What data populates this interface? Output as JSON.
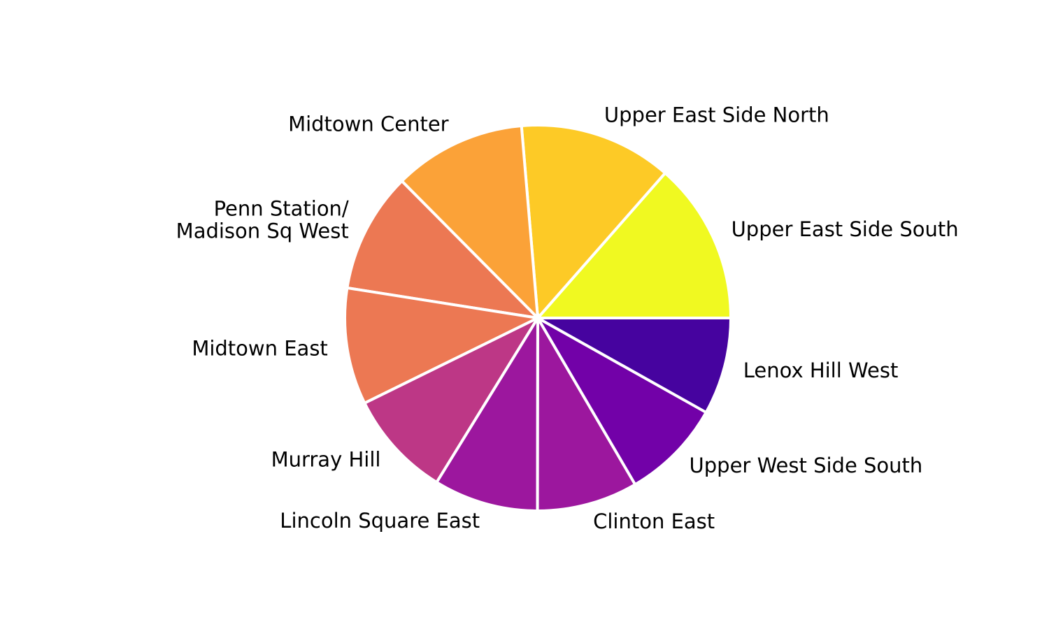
{
  "chart_data": {
    "type": "pie",
    "title": "",
    "start_angle_deg": 0,
    "direction": "counterclockwise",
    "slices": [
      {
        "label": "Upper East Side South",
        "value": 13.3,
        "color": "#f0f921"
      },
      {
        "label": "Upper East Side North",
        "value": 12.6,
        "color": "#fdca26"
      },
      {
        "label": "Midtown Center",
        "value": 10.9,
        "color": "#fba238"
      },
      {
        "label": "Penn Station/\nMadison Sq West",
        "value": 9.9,
        "color": "#ec7853"
      },
      {
        "label": "Midtown East",
        "value": 9.6,
        "color": "#ec7853"
      },
      {
        "label": "Murray Hill",
        "value": 8.8,
        "color": "#bd3786"
      },
      {
        "label": "Lincoln Square East",
        "value": 8.6,
        "color": "#9c179e"
      },
      {
        "label": "Clinton East",
        "value": 8.3,
        "color": "#9c179e"
      },
      {
        "label": "Upper West Side South",
        "value": 8.3,
        "color": "#7201a8"
      },
      {
        "label": "Lenox Hill West",
        "value": 8.0,
        "color": "#46039f"
      }
    ]
  }
}
